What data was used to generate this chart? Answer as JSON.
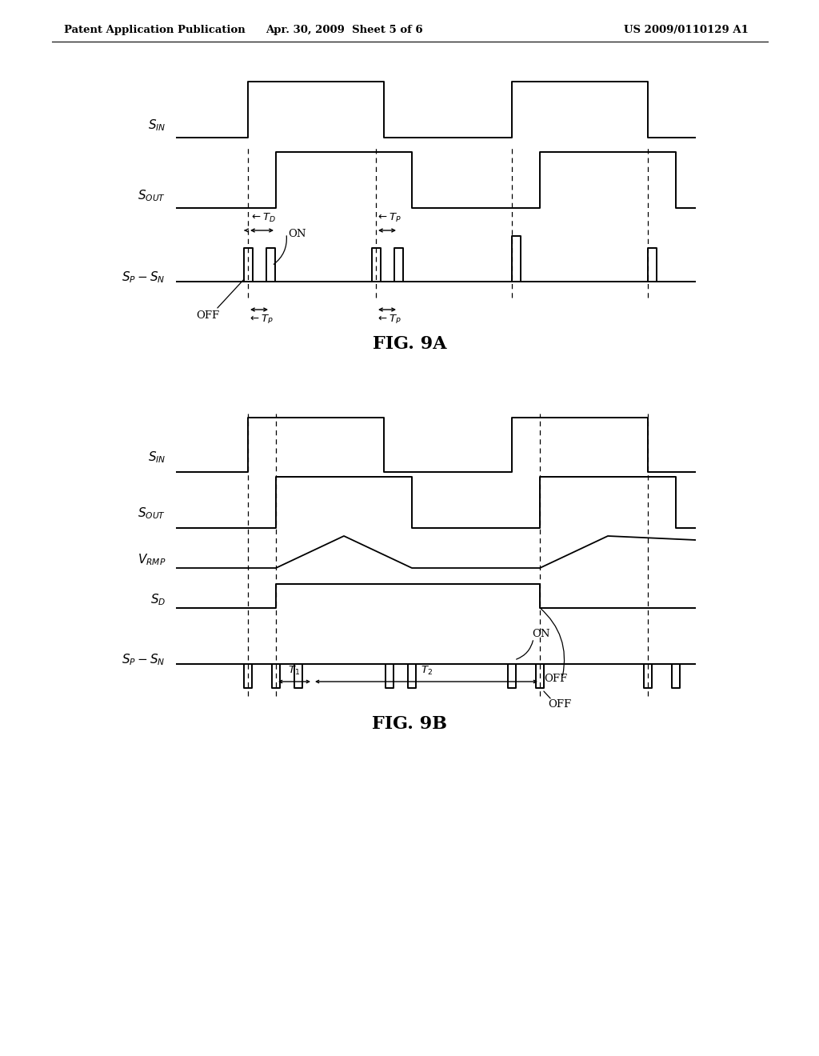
{
  "fig_width": 10.24,
  "fig_height": 13.2,
  "bg_color": "#ffffff",
  "line_color": "#000000",
  "header_left": "Patent Application Publication",
  "header_center": "Apr. 30, 2009  Sheet 5 of 6",
  "header_right": "US 2009/0110129 A1",
  "fig9a_label": "FIG. 9A",
  "fig9b_label": "FIG. 9B"
}
